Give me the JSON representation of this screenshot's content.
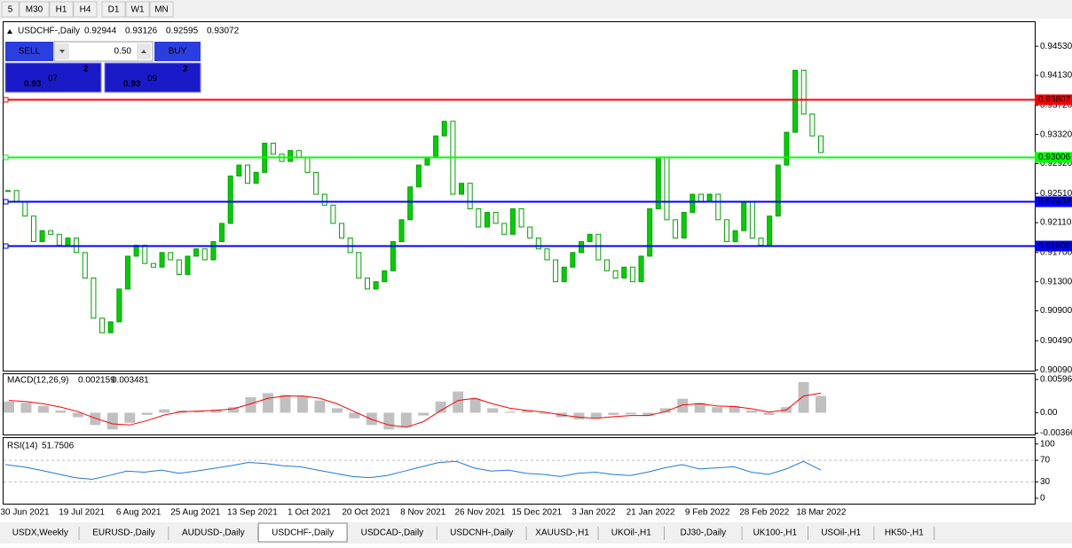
{
  "toolbar": {
    "timeframes": [
      "5",
      "M30",
      "H1",
      "H4",
      "D1",
      "W1",
      "MN"
    ]
  },
  "trade_panel": {
    "sell": "SELL",
    "lot": "0.50",
    "buy": "BUY",
    "bid": {
      "big": "0.93",
      "main": "07",
      "sup": "2"
    },
    "ask": {
      "big": "0.93",
      "main": "09",
      "sup": "2"
    }
  },
  "chart_data": [
    {
      "type": "candlestick",
      "title": "USDCHF-,Daily",
      "ohlc": [
        0.92944,
        0.93126,
        0.92595,
        0.93072
      ],
      "up_color": "#00d000",
      "down_color": "#ffffff",
      "edge_color": "#00a000",
      "closes": [
        0.9255,
        0.924,
        0.922,
        0.9185,
        0.92,
        0.9195,
        0.918,
        0.919,
        0.917,
        0.9135,
        0.908,
        0.906,
        0.9075,
        0.912,
        0.9165,
        0.918,
        0.9155,
        0.915,
        0.917,
        0.916,
        0.914,
        0.9165,
        0.9175,
        0.916,
        0.9185,
        0.921,
        0.9275,
        0.929,
        0.9265,
        0.928,
        0.932,
        0.9305,
        0.9295,
        0.931,
        0.93,
        0.928,
        0.925,
        0.9235,
        0.921,
        0.919,
        0.917,
        0.9135,
        0.912,
        0.913,
        0.9145,
        0.9185,
        0.9215,
        0.926,
        0.929,
        0.93,
        0.933,
        0.935,
        0.925,
        0.9265,
        0.923,
        0.9205,
        0.9225,
        0.921,
        0.9195,
        0.923,
        0.9205,
        0.919,
        0.9175,
        0.916,
        0.913,
        0.915,
        0.917,
        0.9185,
        0.9195,
        0.916,
        0.9145,
        0.9135,
        0.915,
        0.913,
        0.9165,
        0.923,
        0.93,
        0.9215,
        0.919,
        0.9225,
        0.925,
        0.924,
        0.925,
        0.9215,
        0.9185,
        0.92,
        0.924,
        0.919,
        0.918,
        0.922,
        0.929,
        0.9335,
        0.942,
        0.936,
        0.933,
        0.93072
      ],
      "ylim": [
        0.9008,
        0.9486
      ],
      "yticks": [
        {
          "value": 0.9453,
          "label": "0.94530"
        },
        {
          "value": 0.9413,
          "label": "0.94130"
        },
        {
          "value": 0.9372,
          "label": "0.93720"
        },
        {
          "value": 0.9332,
          "label": "0.93320"
        },
        {
          "value": 0.9292,
          "label": "0.92920"
        },
        {
          "value": 0.9251,
          "label": "0.92510"
        },
        {
          "value": 0.9211,
          "label": "0.92110"
        },
        {
          "value": 0.917,
          "label": "0.91700"
        },
        {
          "value": 0.913,
          "label": "0.91300"
        },
        {
          "value": 0.909,
          "label": "0.90900"
        },
        {
          "value": 0.9049,
          "label": "0.90490"
        },
        {
          "value": 0.9009,
          "label": "0.90090"
        }
      ],
      "levels": [
        {
          "value": 0.93807,
          "color": "#ff0000"
        },
        {
          "value": 0.93006,
          "color": "#00ff00"
        },
        {
          "value": 0.92403,
          "color": "#0000ff"
        },
        {
          "value": 0.918,
          "label": "0.91800",
          "color": "#0000ff"
        }
      ],
      "dates": [
        "30 Jun 2021",
        "19 Jul 2021",
        "6 Aug 2021",
        "25 Aug 2021",
        "13 Sep 2021",
        "1 Oct 2021",
        "20 Oct 2021",
        "8 Nov 2021",
        "26 Nov 2021",
        "15 Dec 2021",
        "3 Jan 2022",
        "21 Jan 2022",
        "9 Feb 2022",
        "28 Feb 2022",
        "18 Mar 2022"
      ]
    },
    {
      "type": "macd",
      "title": "MACD(12,26,9)",
      "current": [
        0.002159,
        0.003481
      ],
      "hist_color": "#c0c0c0",
      "signal_color": "#ff0000",
      "values": [
        0.002,
        0.0018,
        0.0012,
        0.0004,
        -0.0008,
        -0.0022,
        -0.003,
        -0.0018,
        -0.0004,
        0.0006,
        0.0004,
        0.0002,
        0.0006,
        0.001,
        0.0028,
        0.0035,
        0.0032,
        0.003,
        0.0022,
        0.0008,
        -0.001,
        -0.0022,
        -0.003,
        -0.0026,
        -0.0005,
        0.002,
        0.0038,
        0.0025,
        0.0008,
        0.0002,
        0.0004,
        -0.0002,
        -0.0008,
        -0.0012,
        -0.001,
        -0.0004,
        -0.0003,
        -0.0006,
        0.0008,
        0.0025,
        0.0018,
        0.001,
        0.0012,
        0.0004,
        -0.0004,
        0.001,
        0.0055,
        0.003
      ],
      "signal": [
        0.0022,
        0.002,
        0.0016,
        0.001,
        0.0002,
        -0.001,
        -0.002,
        -0.0022,
        -0.0014,
        -0.0004,
        0.0002,
        0.0003,
        0.0004,
        0.0007,
        0.0016,
        0.0026,
        0.003,
        0.003,
        0.0026,
        0.0016,
        0.0002,
        -0.0012,
        -0.0022,
        -0.0026,
        -0.0016,
        0.0004,
        0.0022,
        0.0026,
        0.0016,
        0.0008,
        0.0004,
        0.0001,
        -0.0004,
        -0.0008,
        -0.001,
        -0.0007,
        -0.0005,
        -0.0005,
        0.0002,
        0.0014,
        0.0016,
        0.0012,
        0.0011,
        0.0007,
        0.0001,
        0.0005,
        0.003,
        0.0035
      ],
      "ylim": [
        -0.0039,
        0.0069
      ],
      "yticks": [
        0.005963,
        {
          "value": 0,
          "label": "0.00"
        },
        -0.003664
      ]
    },
    {
      "type": "rsi",
      "title": "RSI(14)",
      "current": 51.7506,
      "color": "#1e78e0",
      "values": [
        62,
        58,
        52,
        45,
        38,
        35,
        42,
        50,
        48,
        52,
        46,
        50,
        55,
        60,
        66,
        64,
        60,
        58,
        52,
        46,
        40,
        38,
        42,
        50,
        58,
        66,
        68,
        56,
        50,
        52,
        46,
        44,
        40,
        46,
        48,
        44,
        42,
        48,
        56,
        62,
        54,
        56,
        58,
        48,
        44,
        54,
        68,
        52
      ],
      "ylim": [
        -10,
        111
      ],
      "yticks": [
        100,
        70,
        30,
        0
      ],
      "levels": [
        70,
        30
      ]
    }
  ],
  "tabs": {
    "items": [
      "USDX,Weekly",
      "EURUSD-,Daily",
      "AUDUSD-,Daily",
      "USDCHF-,Daily",
      "USDCAD-,Daily",
      "USDCNH-,Daily",
      "XAUUSD-,H1",
      "UKOil-,H1",
      "DJ30-,Daily",
      "UK100-,H1",
      "USOil-,H1",
      "HK50-,H1"
    ],
    "active": 3
  }
}
